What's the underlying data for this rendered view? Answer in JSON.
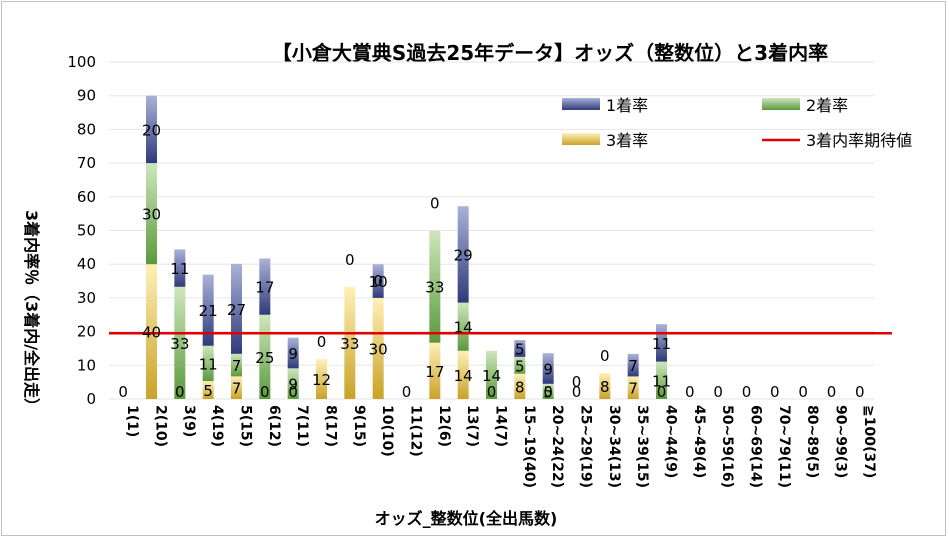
{
  "chart_data": {
    "type": "bar",
    "stacked": true,
    "title": "【小倉大賞典S過去25年データ】オッズ（整数位）と3着内率",
    "xlabel": "オッズ_整数位(全出馬数)",
    "ylabel": "3着内率％（3着内/全出走）",
    "ylim": [
      0,
      100
    ],
    "yticks": [
      0,
      10,
      20,
      30,
      40,
      50,
      60,
      70,
      80,
      90,
      100
    ],
    "legend_position": "top-right",
    "categories": [
      "1(1)",
      "2(10)",
      "3(9)",
      "4(19)",
      "5(15)",
      "6(12)",
      "7(11)",
      "8(17)",
      "9(15)",
      "10(10)",
      "11(12)",
      "12(6)",
      "13(7)",
      "14(7)",
      "15~19(40)",
      "20~24(22)",
      "25~29(19)",
      "30~34(13)",
      "35~39(15)",
      "40~44(9)",
      "45~49(4)",
      "50~59(16)",
      "60~69(14)",
      "70~79(11)",
      "80~89(5)",
      "90~99(3)",
      "≧100(37)"
    ],
    "series": [
      {
        "name": "3着率",
        "color": "#c9a227",
        "values": [
          0,
          40,
          0,
          5.3,
          6.7,
          0,
          0,
          11.8,
          33.3,
          30,
          0,
          16.7,
          14.3,
          0,
          7.5,
          0,
          0,
          7.7,
          6.7,
          0,
          0,
          0,
          0,
          0,
          0,
          0,
          0
        ]
      },
      {
        "name": "2着率",
        "color": "#5b9a3c",
        "values": [
          0,
          30,
          33.3,
          10.5,
          6.7,
          25,
          9.1,
          0,
          0,
          0,
          0,
          33.3,
          14.3,
          14.3,
          5,
          4.5,
          0,
          0,
          0,
          11.1,
          0,
          0,
          0,
          0,
          0,
          0,
          0
        ]
      },
      {
        "name": "1着率",
        "color": "#2f3b7a",
        "values": [
          0,
          20,
          11.1,
          21.1,
          26.7,
          16.7,
          9.1,
          0,
          0,
          10,
          0,
          0,
          28.6,
          0,
          5,
          9.1,
          0,
          0,
          6.7,
          11.1,
          0,
          0,
          0,
          0,
          0,
          0,
          0
        ]
      }
    ],
    "data_labels": {
      "3着率": [
        "0",
        "40",
        "0",
        "5",
        "7",
        "0",
        "0",
        "12",
        "33",
        "30",
        "0",
        "17",
        "14",
        "0",
        "8",
        "0",
        "0",
        "8",
        "7",
        "0",
        "0",
        "0",
        "0",
        "0",
        "0",
        "0",
        "0"
      ],
      "2着率": [
        "",
        "30",
        "33",
        "11",
        "7",
        "25",
        "9",
        "0",
        "",
        "0",
        "",
        "33",
        "14",
        "14",
        "5",
        "5",
        "0",
        "0",
        "",
        "11",
        "",
        "",
        "",
        "",
        "",
        "",
        ""
      ],
      "1着率": [
        "",
        "20",
        "11",
        "21",
        "27",
        "17",
        "9",
        "",
        "0",
        "10",
        "",
        "0",
        "29",
        "",
        "5",
        "9",
        "",
        "",
        "7",
        "11",
        "",
        "",
        "",
        "",
        "",
        "",
        ""
      ]
    },
    "reference_line": {
      "name": "3着内率期待値",
      "value": 19.5,
      "color": "#e00000"
    }
  }
}
